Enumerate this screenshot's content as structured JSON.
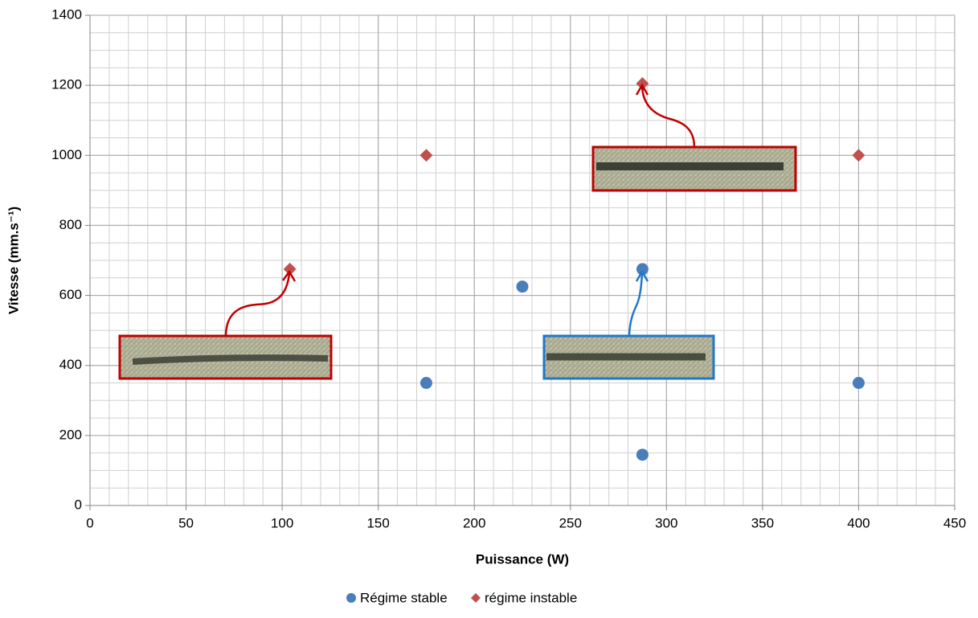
{
  "chart_data": {
    "type": "scatter",
    "x_label": "Puissance (W)",
    "y_label": "Vitesse (mm.s⁻¹)",
    "xlim": [
      0,
      450
    ],
    "xticks": [
      0,
      50,
      100,
      150,
      200,
      250,
      300,
      350,
      400,
      450
    ],
    "ylim": [
      0,
      1400
    ],
    "yticks": [
      0,
      200,
      400,
      600,
      800,
      1000,
      1200,
      1400
    ],
    "grid": true,
    "minor_grid_step": {
      "x": 10,
      "y": 50
    },
    "legend": "bottom",
    "series": [
      {
        "name": "Régime stable",
        "color": "#4a7ebb",
        "marker": "circle",
        "x": [
          175,
          225,
          287.5,
          287.5,
          400
        ],
        "values": [
          350,
          625,
          675,
          145,
          350
        ]
      },
      {
        "name": "régime instable",
        "color": "#c0504d",
        "marker": "diamond",
        "x": [
          104,
          175,
          287.5,
          400
        ],
        "values": [
          675,
          1000,
          1205,
          1000
        ]
      }
    ]
  }
}
